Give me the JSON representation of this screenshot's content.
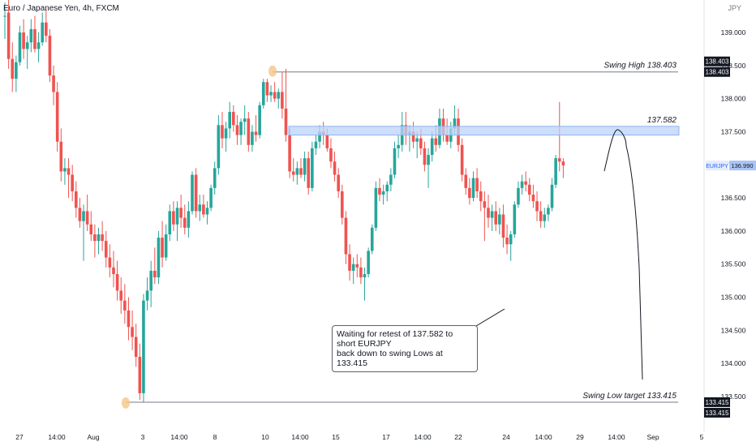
{
  "header": {
    "title": "Euro / Japanese Yen, 4h, FXCM",
    "currency": "JPY"
  },
  "annotation": {
    "line1": "Waiting for retest of 137.582 to short EURJPY",
    "line2": "back down to swing Lows at 133.415"
  },
  "colors": {
    "up": "#26a69a",
    "down": "#ef5350",
    "zone": "#bbd3f7",
    "zone_border": "#90b4f0",
    "current_price": "#2962ff",
    "label_bg": "#131722",
    "ellipse": "#f6c58a"
  },
  "chart_data": {
    "type": "candlestick",
    "symbol": "EURJPY",
    "timeframe": "4h",
    "ylim": [
      133.25,
      139.6
    ],
    "y_ticks": [
      "139.000",
      "138.500",
      "138.000",
      "137.500",
      "137.000",
      "136.500",
      "136.000",
      "135.500",
      "135.000",
      "134.500",
      "134.000",
      "133.500"
    ],
    "x_ticks": [
      "27",
      "14:00",
      "Aug",
      "3",
      "14:00",
      "8",
      "10",
      "14:00",
      "15",
      "17",
      "14:00",
      "22",
      "24",
      "14:00",
      "29",
      "14:00",
      "Sep",
      "5"
    ],
    "levels": {
      "swing_high": {
        "label": "Swing High 138.403",
        "value": 138.403,
        "axis_label": "138.403"
      },
      "resistance": {
        "label": "137.582",
        "value": 137.582,
        "low": 137.45
      },
      "swing_low": {
        "label": "Swing Low target 133.415",
        "value": 133.415,
        "axis_label": "133.415"
      },
      "current": {
        "symbol": "EURJPY",
        "value": 136.99,
        "axis_label": "136.990"
      }
    },
    "candles": [
      [
        139.25,
        139.45,
        138.9,
        139.25
      ],
      [
        139.3,
        139.55,
        138.45,
        138.6
      ],
      [
        138.6,
        138.85,
        138.1,
        138.3
      ],
      [
        138.3,
        138.65,
        138.1,
        138.55
      ],
      [
        138.55,
        139.1,
        138.5,
        139.0
      ],
      [
        139.0,
        139.2,
        138.6,
        138.75
      ],
      [
        138.75,
        138.95,
        138.45,
        138.85
      ],
      [
        138.85,
        139.2,
        138.7,
        139.05
      ],
      [
        139.05,
        139.25,
        138.7,
        138.75
      ],
      [
        138.75,
        139.0,
        138.55,
        138.85
      ],
      [
        138.85,
        139.3,
        138.8,
        139.15
      ],
      [
        139.15,
        139.35,
        138.85,
        138.95
      ],
      [
        138.95,
        139.05,
        138.25,
        138.35
      ],
      [
        138.35,
        138.5,
        137.9,
        138.1
      ],
      [
        138.1,
        138.25,
        137.2,
        137.35
      ],
      [
        137.35,
        137.55,
        136.75,
        136.9
      ],
      [
        136.9,
        137.1,
        136.7,
        136.95
      ],
      [
        136.95,
        137.1,
        136.5,
        136.85
      ],
      [
        136.85,
        137.0,
        136.45,
        136.6
      ],
      [
        136.6,
        136.75,
        136.2,
        136.35
      ],
      [
        136.35,
        136.5,
        136.05,
        136.15
      ],
      [
        136.15,
        136.4,
        135.55,
        136.3
      ],
      [
        136.3,
        136.55,
        136.0,
        136.1
      ],
      [
        136.1,
        136.3,
        135.85,
        135.95
      ],
      [
        135.95,
        136.1,
        135.6,
        135.85
      ],
      [
        135.85,
        136.05,
        135.65,
        135.95
      ],
      [
        135.95,
        136.15,
        135.7,
        135.85
      ],
      [
        135.85,
        136.0,
        135.45,
        135.6
      ],
      [
        135.6,
        135.8,
        135.3,
        135.45
      ],
      [
        135.45,
        135.7,
        135.15,
        135.35
      ],
      [
        135.35,
        135.55,
        134.95,
        135.1
      ],
      [
        135.1,
        135.3,
        134.75,
        134.95
      ],
      [
        134.95,
        135.2,
        134.6,
        134.8
      ],
      [
        134.8,
        135.0,
        134.35,
        134.55
      ],
      [
        134.55,
        134.8,
        134.2,
        134.4
      ],
      [
        134.4,
        134.6,
        133.95,
        134.1
      ],
      [
        134.1,
        134.3,
        133.45,
        133.55
      ],
      [
        133.55,
        135.05,
        133.42,
        134.95
      ],
      [
        134.95,
        135.3,
        134.8,
        135.1
      ],
      [
        135.1,
        135.55,
        134.85,
        135.4
      ],
      [
        135.4,
        135.75,
        135.2,
        135.3
      ],
      [
        135.3,
        136.0,
        135.2,
        135.9
      ],
      [
        135.9,
        136.15,
        135.45,
        135.6
      ],
      [
        135.6,
        136.1,
        135.55,
        135.95
      ],
      [
        135.95,
        136.4,
        135.85,
        136.3
      ],
      [
        136.3,
        136.45,
        136.0,
        136.1
      ],
      [
        136.1,
        136.45,
        135.85,
        136.35
      ],
      [
        136.35,
        136.55,
        136.05,
        136.2
      ],
      [
        136.2,
        136.4,
        135.95,
        136.05
      ],
      [
        136.05,
        136.45,
        135.9,
        136.3
      ],
      [
        136.3,
        136.9,
        136.25,
        136.85
      ],
      [
        136.85,
        136.95,
        136.2,
        136.3
      ],
      [
        136.3,
        136.55,
        136.15,
        136.4
      ],
      [
        136.4,
        136.55,
        136.2,
        136.25
      ],
      [
        136.25,
        136.45,
        136.1,
        136.35
      ],
      [
        136.35,
        136.7,
        136.3,
        136.65
      ],
      [
        136.65,
        137.05,
        136.55,
        136.95
      ],
      [
        136.95,
        137.75,
        136.85,
        137.6
      ],
      [
        137.6,
        137.8,
        137.25,
        137.4
      ],
      [
        137.4,
        137.65,
        137.2,
        137.55
      ],
      [
        137.55,
        137.95,
        137.4,
        137.8
      ],
      [
        137.8,
        137.9,
        137.5,
        137.6
      ],
      [
        137.6,
        137.75,
        137.3,
        137.45
      ],
      [
        137.45,
        137.7,
        137.3,
        137.65
      ],
      [
        137.65,
        137.9,
        137.45,
        137.7
      ],
      [
        137.7,
        137.8,
        137.2,
        137.3
      ],
      [
        137.3,
        137.6,
        137.2,
        137.5
      ],
      [
        137.5,
        137.75,
        137.35,
        137.45
      ],
      [
        137.45,
        137.95,
        137.4,
        137.9
      ],
      [
        137.9,
        138.3,
        137.85,
        138.25
      ],
      [
        138.25,
        138.3,
        137.95,
        138.05
      ],
      [
        138.05,
        138.2,
        137.95,
        138.1
      ],
      [
        138.1,
        138.25,
        137.95,
        138.0
      ],
      [
        138.0,
        138.15,
        137.85,
        138.1
      ],
      [
        138.1,
        138.4,
        137.7,
        137.85
      ],
      [
        137.85,
        138.45,
        137.35,
        137.45
      ],
      [
        137.45,
        137.55,
        136.8,
        136.9
      ],
      [
        136.9,
        137.1,
        136.75,
        136.85
      ],
      [
        136.85,
        137.05,
        136.7,
        136.95
      ],
      [
        136.95,
        137.1,
        136.8,
        136.85
      ],
      [
        136.85,
        137.2,
        136.75,
        137.1
      ],
      [
        137.1,
        137.2,
        136.55,
        136.65
      ],
      [
        136.65,
        137.35,
        136.6,
        137.25
      ],
      [
        137.25,
        137.45,
        137.15,
        137.35
      ],
      [
        137.35,
        137.6,
        137.25,
        137.5
      ],
      [
        137.5,
        137.65,
        137.3,
        137.45
      ],
      [
        137.45,
        137.55,
        137.2,
        137.25
      ],
      [
        137.25,
        137.4,
        136.95,
        137.05
      ],
      [
        137.05,
        137.2,
        136.75,
        136.85
      ],
      [
        136.85,
        136.95,
        136.5,
        136.6
      ],
      [
        136.6,
        136.7,
        136.1,
        136.2
      ],
      [
        136.2,
        136.3,
        135.5,
        135.65
      ],
      [
        135.65,
        135.8,
        135.25,
        135.4
      ],
      [
        135.4,
        135.6,
        135.2,
        135.5
      ],
      [
        135.5,
        135.65,
        135.3,
        135.45
      ],
      [
        135.45,
        135.6,
        135.2,
        135.3
      ],
      [
        135.3,
        135.45,
        134.95,
        135.35
      ],
      [
        135.35,
        135.75,
        135.3,
        135.7
      ],
      [
        135.7,
        136.1,
        135.65,
        136.05
      ],
      [
        136.05,
        136.75,
        136.0,
        136.65
      ],
      [
        136.65,
        136.8,
        136.45,
        136.55
      ],
      [
        136.55,
        136.7,
        136.4,
        136.6
      ],
      [
        136.6,
        136.75,
        136.45,
        136.7
      ],
      [
        136.7,
        136.95,
        136.6,
        136.85
      ],
      [
        136.85,
        137.35,
        136.8,
        137.25
      ],
      [
        137.25,
        137.45,
        137.1,
        137.3
      ],
      [
        137.3,
        137.8,
        137.2,
        137.6
      ],
      [
        137.6,
        137.8,
        137.3,
        137.45
      ],
      [
        137.45,
        137.6,
        137.2,
        137.5
      ],
      [
        137.5,
        137.65,
        137.25,
        137.35
      ],
      [
        137.35,
        137.5,
        137.1,
        137.4
      ],
      [
        137.4,
        137.55,
        137.15,
        137.25
      ],
      [
        137.25,
        137.35,
        136.9,
        137.0
      ],
      [
        137.0,
        137.25,
        136.65,
        137.15
      ],
      [
        137.15,
        137.5,
        137.05,
        137.4
      ],
      [
        137.4,
        137.6,
        137.2,
        137.3
      ],
      [
        137.3,
        137.85,
        137.25,
        137.7
      ],
      [
        137.7,
        137.85,
        137.35,
        137.45
      ],
      [
        137.45,
        137.7,
        137.3,
        137.35
      ],
      [
        137.35,
        137.65,
        137.25,
        137.55
      ],
      [
        137.55,
        137.9,
        137.45,
        137.7
      ],
      [
        137.7,
        137.85,
        137.2,
        137.3
      ],
      [
        137.3,
        137.4,
        136.75,
        136.85
      ],
      [
        136.85,
        136.95,
        136.55,
        136.65
      ],
      [
        136.65,
        136.8,
        136.4,
        136.5
      ],
      [
        136.5,
        136.9,
        136.45,
        136.8
      ],
      [
        136.8,
        136.95,
        136.5,
        136.6
      ],
      [
        136.6,
        136.75,
        136.3,
        136.45
      ],
      [
        136.45,
        136.6,
        135.85,
        136.35
      ],
      [
        136.35,
        136.55,
        136.05,
        136.2
      ],
      [
        136.2,
        136.4,
        136.0,
        136.3
      ],
      [
        136.3,
        136.45,
        136.0,
        136.1
      ],
      [
        136.1,
        136.35,
        135.95,
        136.25
      ],
      [
        136.25,
        136.4,
        135.75,
        135.9
      ],
      [
        135.9,
        136.1,
        135.65,
        135.8
      ],
      [
        135.8,
        136.0,
        135.55,
        135.95
      ],
      [
        135.95,
        136.45,
        135.9,
        136.4
      ],
      [
        136.4,
        136.75,
        136.35,
        136.65
      ],
      [
        136.65,
        136.85,
        136.55,
        136.75
      ],
      [
        136.75,
        136.9,
        136.6,
        136.7
      ],
      [
        136.7,
        136.8,
        136.45,
        136.55
      ],
      [
        136.55,
        136.7,
        136.35,
        136.45
      ],
      [
        136.45,
        136.6,
        136.15,
        136.3
      ],
      [
        136.3,
        136.45,
        136.05,
        136.15
      ],
      [
        136.15,
        136.35,
        136.05,
        136.25
      ],
      [
        136.25,
        136.4,
        136.15,
        136.35
      ],
      [
        136.35,
        136.8,
        136.3,
        136.7
      ],
      [
        136.7,
        137.15,
        136.65,
        137.1
      ],
      [
        137.1,
        137.95,
        136.9,
        137.05
      ],
      [
        137.05,
        137.1,
        136.8,
        136.99
      ]
    ],
    "projection": [
      [
        745,
        211
      ],
      [
        762,
        160
      ],
      [
        772,
        180
      ],
      [
        788,
        330
      ],
      [
        792,
        468
      ]
    ]
  }
}
